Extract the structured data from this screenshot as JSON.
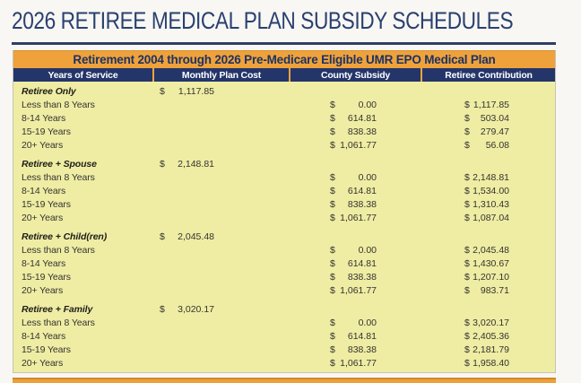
{
  "document": {
    "title": "2026 RETIREE MEDICAL PLAN SUBSIDY SCHEDULES",
    "colors": {
      "title_navy": "#2a4070",
      "banner_orange": "#efa23b",
      "header_navy": "#24356a",
      "table_yellow": "#efeca4"
    },
    "table": {
      "banner": "Retirement 2004 through 2026 Pre-Medicare Eligible UMR EPO Medical Plan",
      "columns": [
        "Years of Service",
        "Monthly Plan Cost",
        "County Subsidy",
        "Retiree Contribution"
      ],
      "currency_symbol": "$",
      "sections": [
        {
          "label": "Retiree Only",
          "monthly_plan_cost": "1,117.85",
          "rows": [
            {
              "label": "Less than 8 Years",
              "county_subsidy": "0.00",
              "retiree_contribution": "1,117.85"
            },
            {
              "label": "8-14 Years",
              "county_subsidy": "614.81",
              "retiree_contribution": "503.04"
            },
            {
              "label": "15-19 Years",
              "county_subsidy": "838.38",
              "retiree_contribution": "279.47"
            },
            {
              "label": "20+ Years",
              "county_subsidy": "1,061.77",
              "retiree_contribution": "56.08"
            }
          ]
        },
        {
          "label": "Retiree + Spouse",
          "monthly_plan_cost": "2,148.81",
          "rows": [
            {
              "label": "Less than 8 Years",
              "county_subsidy": "0.00",
              "retiree_contribution": "2,148.81"
            },
            {
              "label": "8-14 Years",
              "county_subsidy": "614.81",
              "retiree_contribution": "1,534.00"
            },
            {
              "label": "15-19 Years",
              "county_subsidy": "838.38",
              "retiree_contribution": "1,310.43"
            },
            {
              "label": "20+ Years",
              "county_subsidy": "1,061.77",
              "retiree_contribution": "1,087.04"
            }
          ]
        },
        {
          "label": "Retiree + Child(ren)",
          "monthly_plan_cost": "2,045.48",
          "rows": [
            {
              "label": "Less than 8 Years",
              "county_subsidy": "0.00",
              "retiree_contribution": "2,045.48"
            },
            {
              "label": "8-14 Years",
              "county_subsidy": "614.81",
              "retiree_contribution": "1,430.67"
            },
            {
              "label": "15-19 Years",
              "county_subsidy": "838.38",
              "retiree_contribution": "1,207.10"
            },
            {
              "label": "20+ Years",
              "county_subsidy": "1,061.77",
              "retiree_contribution": "983.71"
            }
          ]
        },
        {
          "label": "Retiree + Family",
          "monthly_plan_cost": "3,020.17",
          "rows": [
            {
              "label": "Less than 8 Years",
              "county_subsidy": "0.00",
              "retiree_contribution": "3,020.17"
            },
            {
              "label": "8-14 Years",
              "county_subsidy": "614.81",
              "retiree_contribution": "2,405.36"
            },
            {
              "label": "15-19 Years",
              "county_subsidy": "838.38",
              "retiree_contribution": "2,181.79"
            },
            {
              "label": "20+ Years",
              "county_subsidy": "1,061.77",
              "retiree_contribution": "1,958.40"
            }
          ]
        }
      ]
    }
  }
}
